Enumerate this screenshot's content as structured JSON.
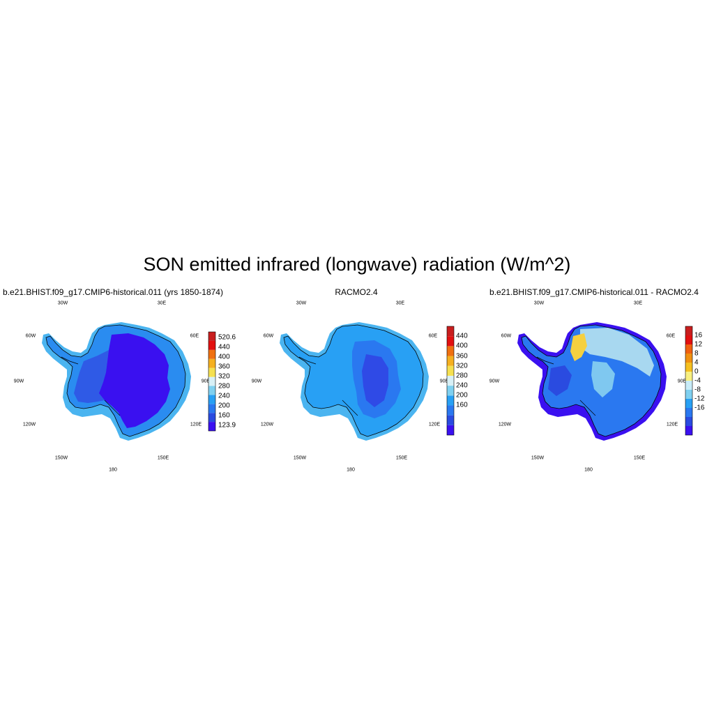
{
  "title": "SON emitted infrared (longwave) radiation (W/m^2)",
  "graticule_labels": [
    "30W",
    "30E",
    "60W",
    "60E",
    "90W",
    "90E",
    "120W",
    "120E",
    "150W",
    "150E",
    "180"
  ],
  "panels": [
    {
      "title": "b.e21.BHIST.f09_g17.CMIP6-historical.011 (yrs 1850-1874)",
      "colorbar": {
        "colors": [
          "#3a10f0",
          "#2a4be0",
          "#2a78f0",
          "#28a0f4",
          "#7fd0f0",
          "#d8f0f6",
          "#f5e050",
          "#f5b020",
          "#f07010",
          "#e21010",
          "#c81e1e"
        ],
        "labels": [
          "520.6",
          "440",
          "400",
          "360",
          "320",
          "280",
          "240",
          "200",
          "160",
          "123.9"
        ]
      }
    },
    {
      "title": "RACMO2.4",
      "colorbar": {
        "colors": [
          "#3a10f0",
          "#2a4be0",
          "#2a78f0",
          "#28a0f4",
          "#7fd0f0",
          "#d8f0f6",
          "#f5e050",
          "#f5b020",
          "#f07010",
          "#e21010",
          "#c81e1e"
        ],
        "labels": [
          "440",
          "400",
          "360",
          "320",
          "280",
          "240",
          "200",
          "160"
        ]
      }
    },
    {
      "title": "b.e21.BHIST.f09_g17.CMIP6-historical.011 - RACMO2.4",
      "colorbar": {
        "colors": [
          "#3a10f0",
          "#2a4be0",
          "#2a78f0",
          "#28a0f4",
          "#7fd0f0",
          "#c8ecf8",
          "#f8f080",
          "#f5c020",
          "#f09010",
          "#f06010",
          "#e21010",
          "#c81e1e"
        ],
        "labels": [
          "16",
          "12",
          "8",
          "4",
          "0",
          "-4",
          "-8",
          "-12",
          "-16"
        ]
      }
    }
  ]
}
